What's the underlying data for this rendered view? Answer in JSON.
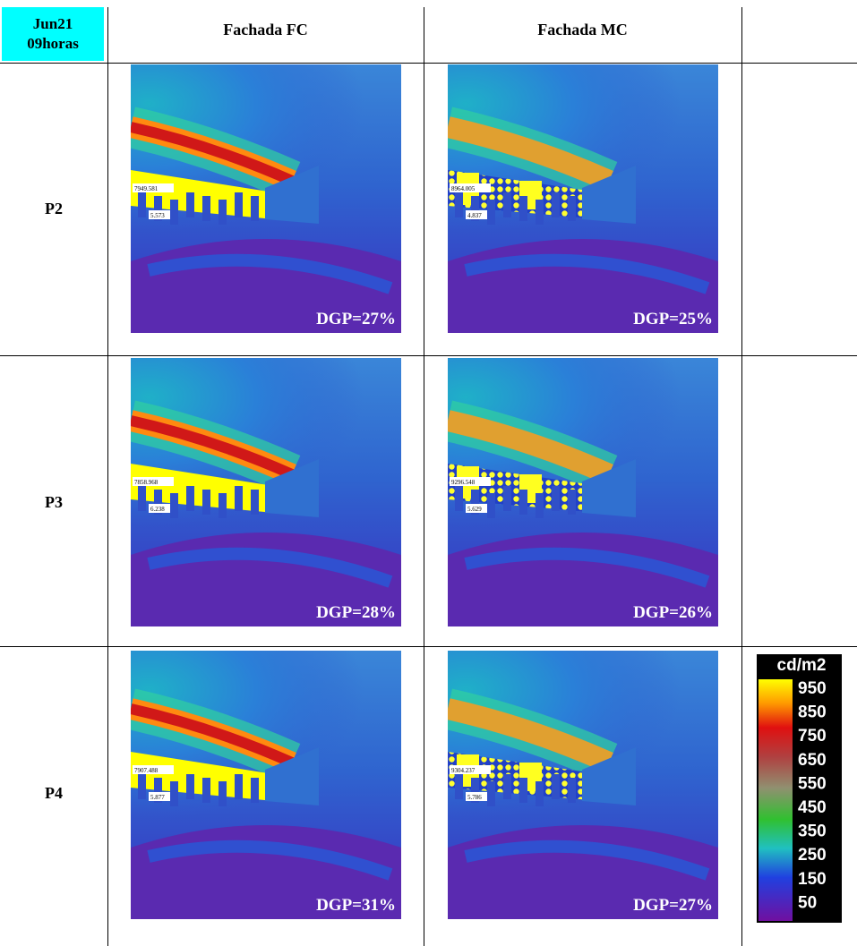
{
  "header": {
    "corner": [
      "Jun21",
      "09horas"
    ],
    "columns": [
      "Fachada FC",
      "Fachada MC"
    ]
  },
  "rows": [
    {
      "label": "P2",
      "fc": {
        "readings": [
          "7949.581",
          "5.573"
        ],
        "dgp": "DGP=27%"
      },
      "mc": {
        "readings": [
          "8964.005",
          "4.837"
        ],
        "dgp": "DGP=25%"
      }
    },
    {
      "label": "P3",
      "fc": {
        "readings": [
          "7858.968",
          "6.238"
        ],
        "dgp": "DGP=28%"
      },
      "mc": {
        "readings": [
          "9296.548",
          "5.629"
        ],
        "dgp": "DGP=26%"
      }
    },
    {
      "label": "P4",
      "fc": {
        "readings": [
          "7907.488",
          "5.877"
        ],
        "dgp": "DGP=31%"
      },
      "mc": {
        "readings": [
          "9304.237",
          "5.786"
        ],
        "dgp": "DGP=27%"
      }
    }
  ],
  "legend": {
    "unit": "cd/m2",
    "ticks": [
      950,
      850,
      750,
      650,
      550,
      450,
      350,
      250,
      150,
      50
    ]
  }
}
